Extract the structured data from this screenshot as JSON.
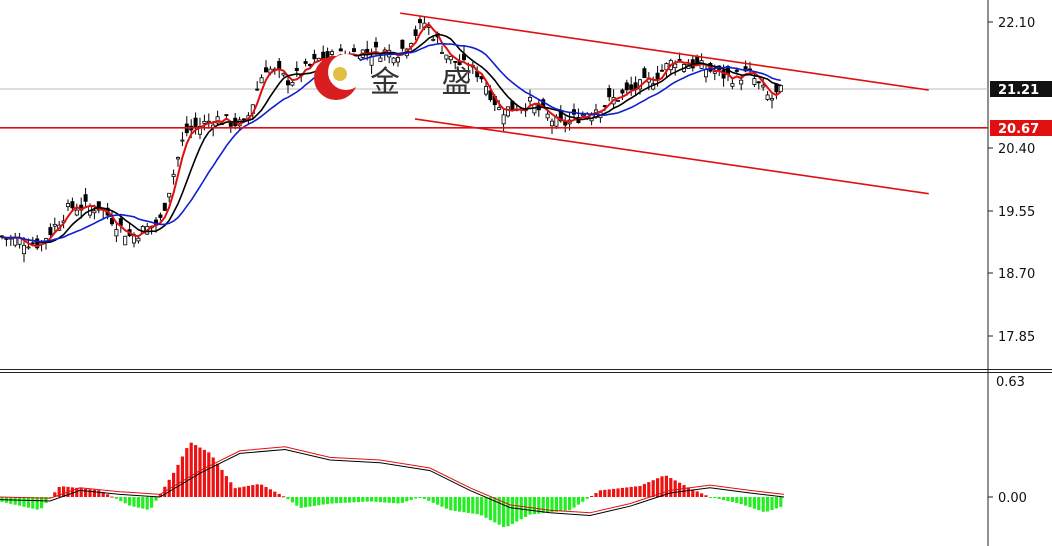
{
  "chart_data": [
    {
      "type": "candlestick",
      "price_axis": {
        "ticks": [
          "22.10",
          "20.40",
          "19.55",
          "18.70",
          "17.85"
        ],
        "ylim": [
          17.5,
          22.35
        ]
      },
      "last_price_tag": "21.21",
      "level_tag": "20.67",
      "horizontal_level": 20.67,
      "channel_upper": {
        "from": [
          0.405,
          22.22
        ],
        "to": [
          0.94,
          21.18
        ]
      },
      "channel_lower": {
        "from": [
          0.42,
          20.79
        ],
        "to": [
          0.94,
          19.78
        ]
      },
      "watermark": "金 盛",
      "colors": {
        "ma_fast": "#e01010",
        "ma_mid": "#000000",
        "ma_slow": "#1020d0",
        "channel": "#e01010"
      }
    },
    {
      "type": "macd",
      "axis": {
        "ticks": [
          "0.63",
          "0.00"
        ]
      },
      "histogram_colors": {
        "positive": "#ee1111",
        "negative": "#22ee22"
      }
    }
  ]
}
